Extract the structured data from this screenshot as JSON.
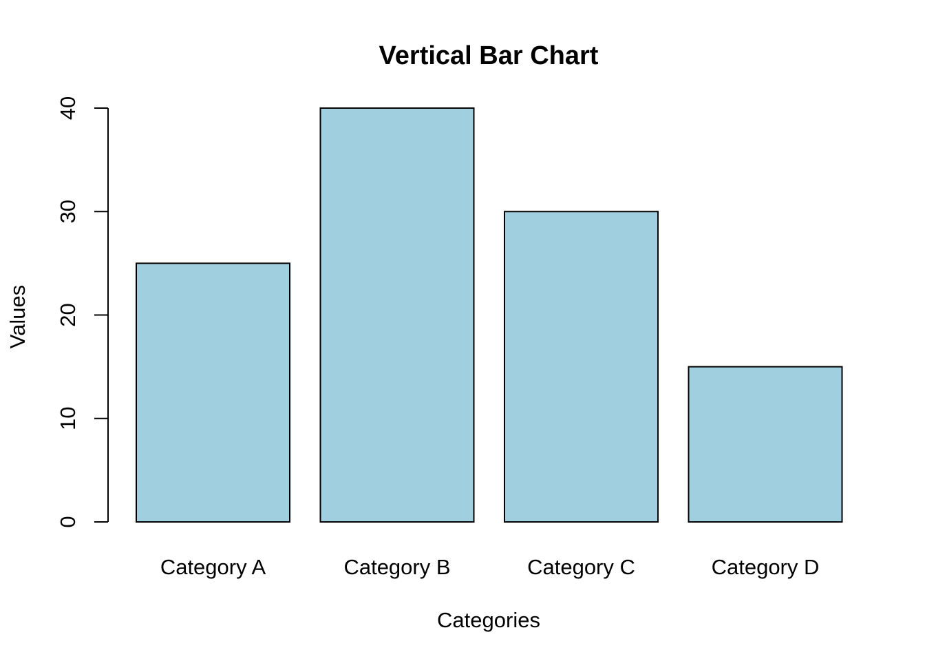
{
  "chart_data": {
    "type": "bar",
    "title": "Vertical Bar Chart",
    "xlabel": "Categories",
    "ylabel": "Values",
    "categories": [
      "Category A",
      "Category B",
      "Category C",
      "Category D"
    ],
    "values": [
      25,
      40,
      30,
      15
    ],
    "ylim": [
      0,
      40
    ],
    "yticks": [
      "0",
      "10",
      "20",
      "30",
      "40"
    ],
    "bar_color": "#a0cfe0",
    "grid": false,
    "legend": "none"
  }
}
